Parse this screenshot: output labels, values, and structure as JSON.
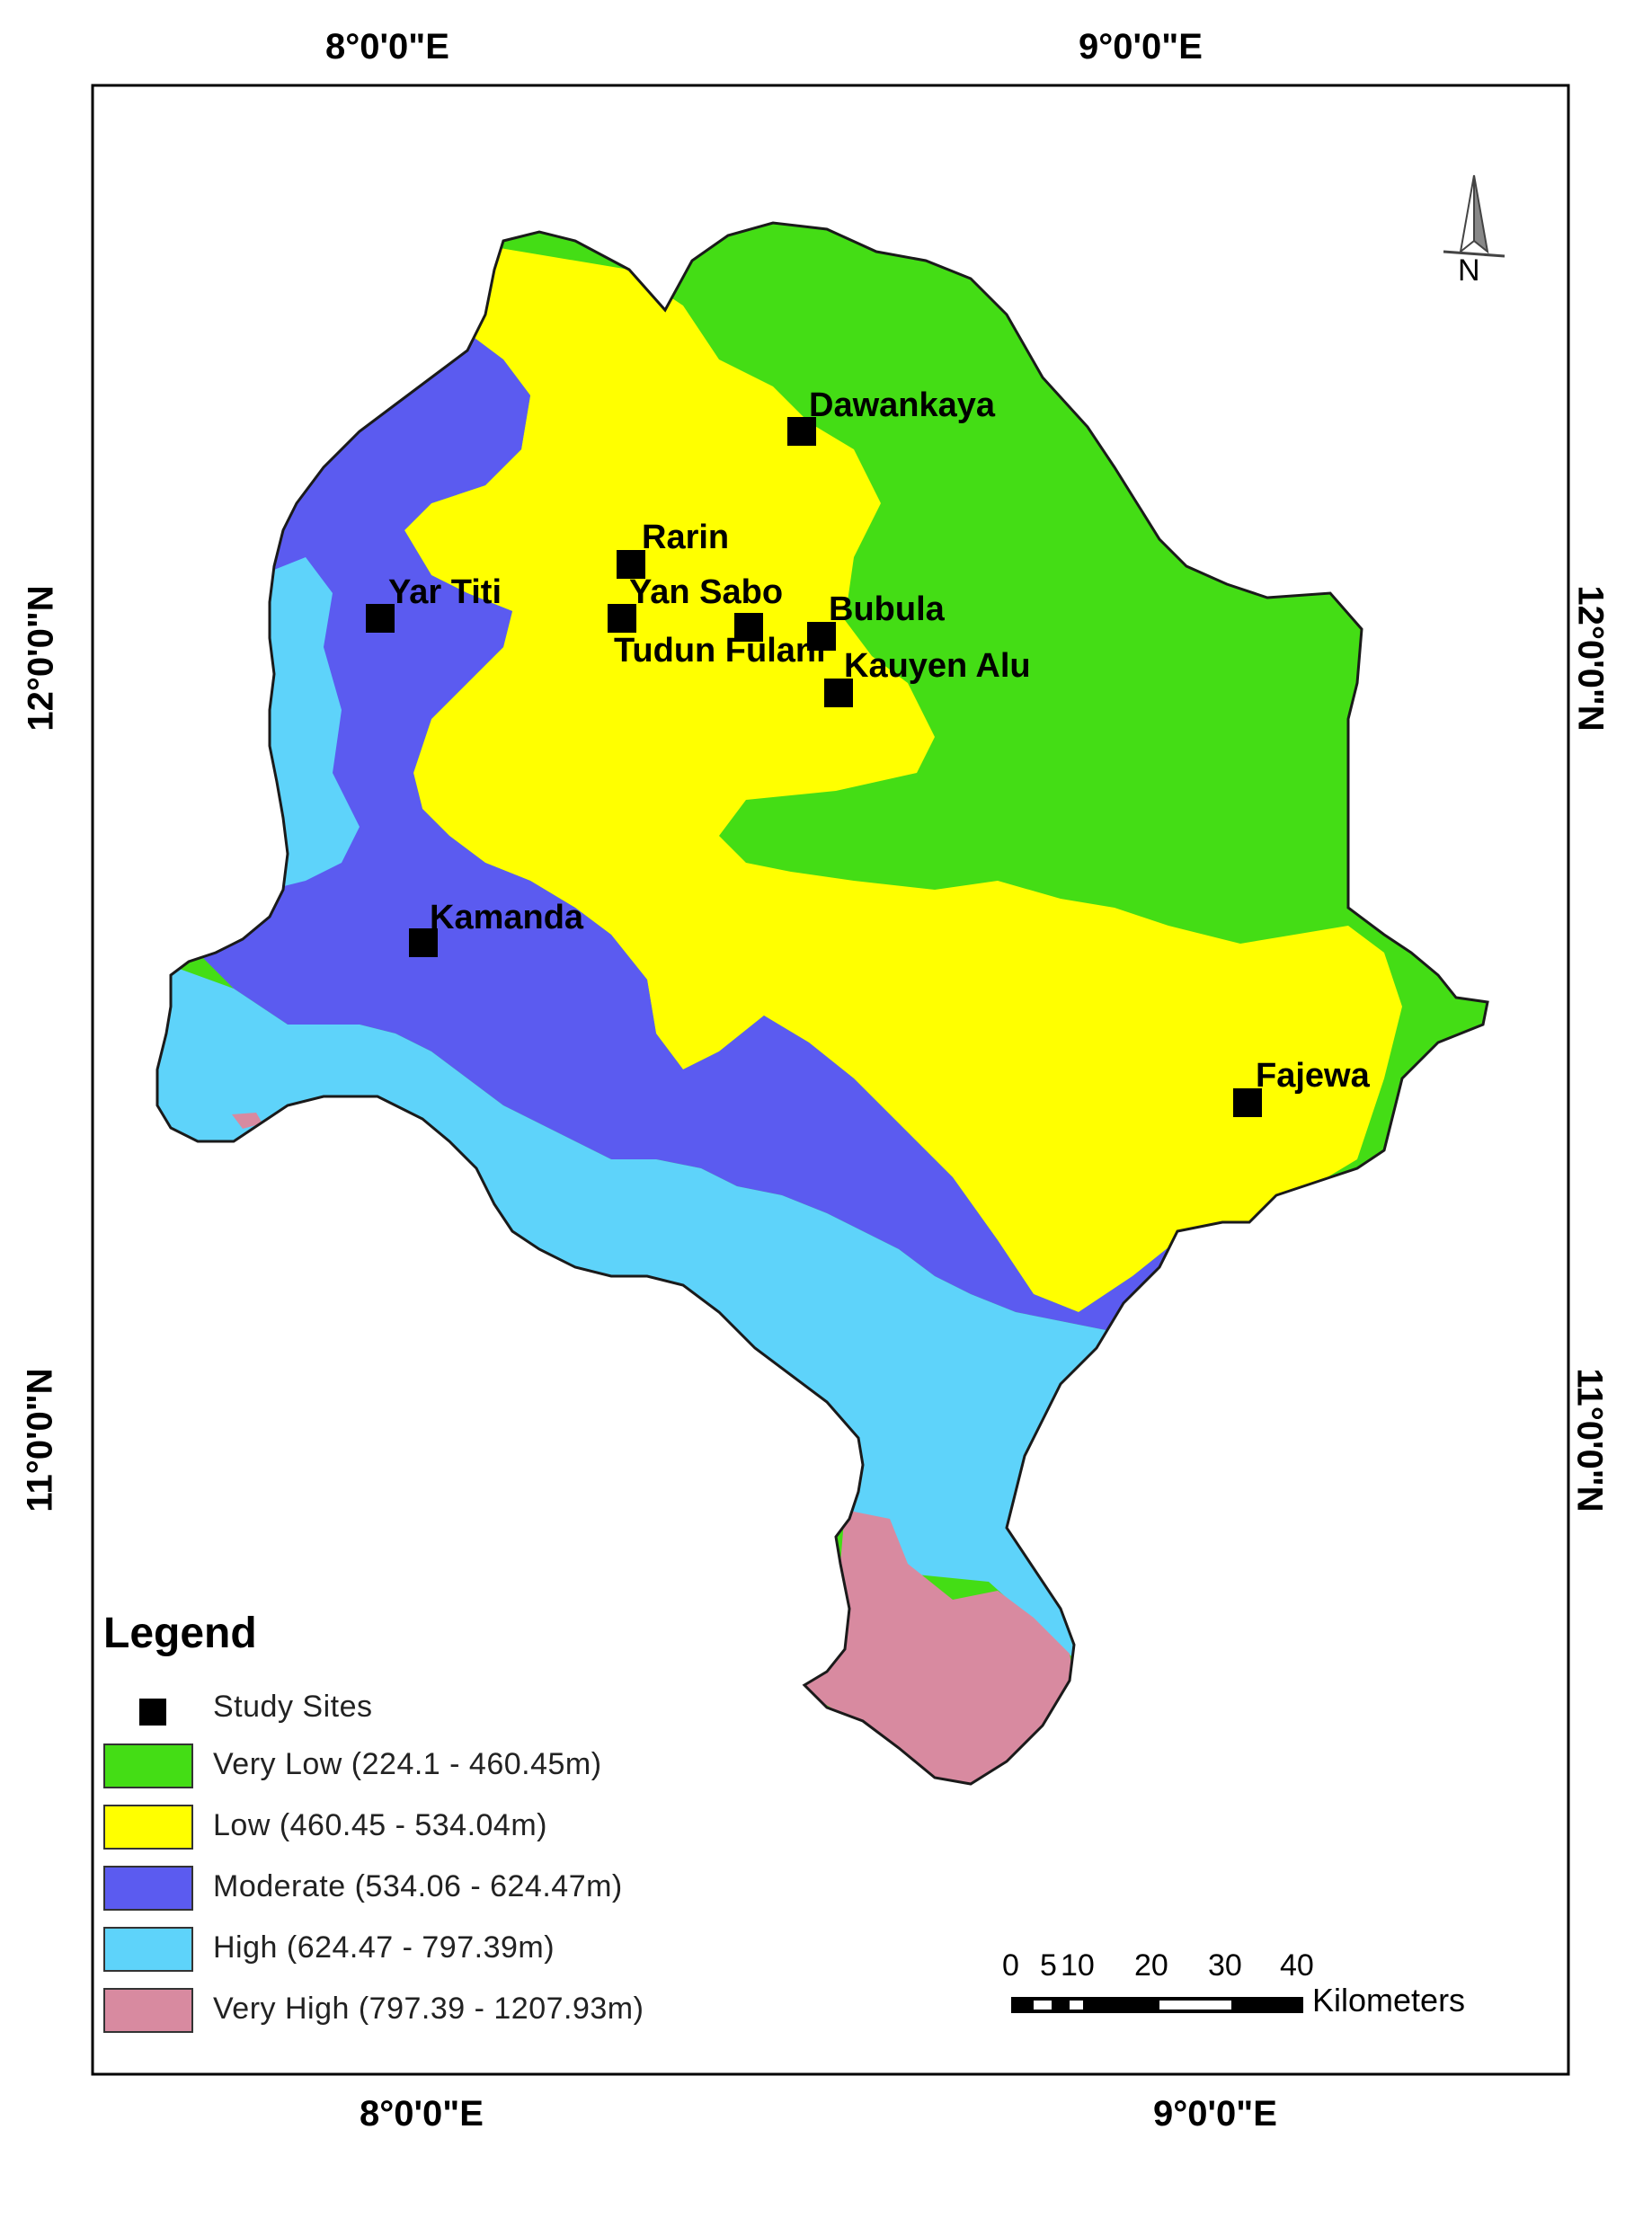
{
  "map": {
    "graticule": {
      "top": [
        "8°0'0\"E",
        "9°0'0\"E"
      ],
      "bottom": [
        "8°0'0\"E",
        "9°0'0\"E"
      ],
      "left": [
        "12°0'0\"N",
        "11°0'0\"N"
      ],
      "right": [
        "12°0'0\"N",
        "11°0'0\"N"
      ]
    },
    "north_arrow": {
      "label": "N",
      "icon": "north-arrow-icon"
    },
    "classes": [
      {
        "key": "very_low",
        "color": "#44dd15"
      },
      {
        "key": "low",
        "color": "#ffff00"
      },
      {
        "key": "moderate",
        "color": "#5b5bf0"
      },
      {
        "key": "high",
        "color": "#5ed3fa"
      },
      {
        "key": "very_high",
        "color": "#d88aa0"
      }
    ],
    "sites": [
      {
        "name": "Dawankaya"
      },
      {
        "name": "Rarin"
      },
      {
        "name": "Yar Titi"
      },
      {
        "name": "Yan Sabo"
      },
      {
        "name": "Tudun Fulani"
      },
      {
        "name": "Bubula"
      },
      {
        "name": "Kauyen Alu"
      },
      {
        "name": "Kamanda"
      },
      {
        "name": "Fajewa"
      }
    ]
  },
  "legend": {
    "title": "Legend",
    "items": [
      {
        "label": "Study Sites",
        "type": "point",
        "color": "#000000"
      },
      {
        "label": "Very Low  (224.1 - 460.45m)",
        "type": "fill",
        "color": "#44dd15"
      },
      {
        "label": "Low (460.45 - 534.04m)",
        "type": "fill",
        "color": "#ffff00"
      },
      {
        "label": "Moderate  (534.06 - 624.47m)",
        "type": "fill",
        "color": "#5b5bf0"
      },
      {
        "label": "High  (624.47 - 797.39m)",
        "type": "fill",
        "color": "#5ed3fa"
      },
      {
        "label": "Very High  (797.39 - 1207.93m)",
        "type": "fill",
        "color": "#d88aa0"
      }
    ]
  },
  "scale_bar": {
    "numbers": [
      "0",
      "5",
      "10",
      "20",
      "30",
      "40"
    ],
    "unit": "Kilometers"
  }
}
